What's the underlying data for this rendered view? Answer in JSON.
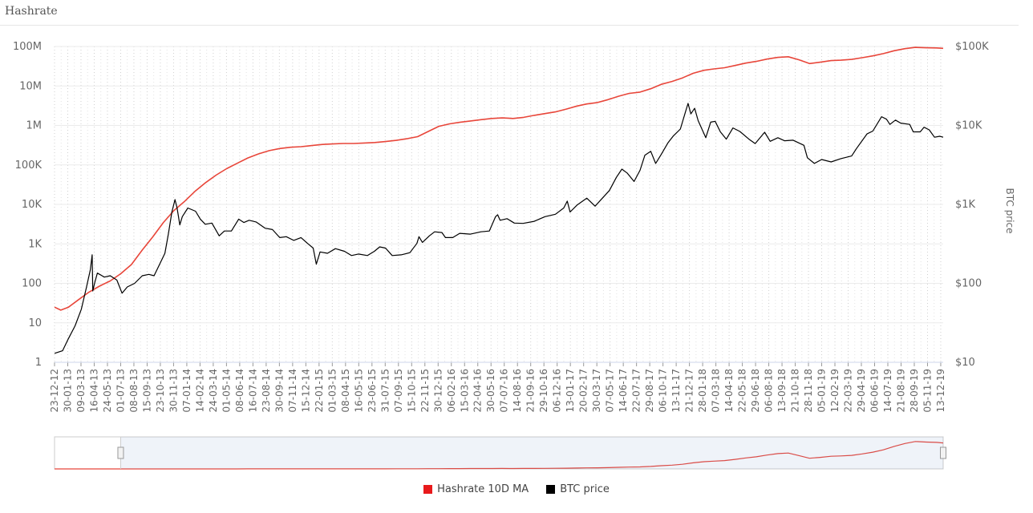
{
  "title": "Hashrate",
  "chart_data": {
    "type": "line",
    "y_left": {
      "scale": "log",
      "range": [
        1,
        100000000
      ],
      "ticks": [
        1,
        10,
        100,
        1000,
        10000,
        100000,
        1000000,
        10000000,
        100000000
      ],
      "tick_labels": [
        "1",
        "10",
        "100",
        "1K",
        "10K",
        "100K",
        "1M",
        "10M",
        "100M"
      ]
    },
    "y_right": {
      "label": "BTC price",
      "scale": "log",
      "range": [
        10,
        100000
      ],
      "ticks": [
        10,
        100,
        1000,
        10000,
        100000
      ],
      "tick_labels": [
        "$10",
        "$100",
        "$1K",
        "$10K",
        "$100K"
      ]
    },
    "x_range": [
      "2012-12-23",
      "2019-12-20"
    ],
    "x_tick_labels": [
      "23-12-12",
      "30-01-13",
      "09-03-13",
      "16-04-13",
      "24-05-13",
      "01-07-13",
      "08-08-13",
      "15-09-13",
      "23-10-13",
      "30-11-13",
      "07-01-14",
      "14-02-14",
      "24-03-14",
      "01-05-14",
      "08-06-14",
      "16-07-14",
      "23-08-14",
      "30-09-14",
      "07-11-14",
      "15-12-14",
      "22-01-15",
      "01-03-15",
      "08-04-15",
      "16-05-15",
      "23-06-15",
      "31-07-15",
      "07-09-15",
      "15-10-15",
      "22-11-15",
      "30-12-15",
      "06-02-16",
      "15-03-16",
      "22-04-16",
      "30-05-16",
      "07-07-16",
      "14-08-16",
      "21-09-16",
      "29-10-16",
      "06-12-16",
      "13-01-17",
      "20-02-17",
      "30-03-17",
      "07-05-17",
      "14-06-17",
      "22-07-17",
      "29-08-17",
      "06-10-17",
      "13-11-17",
      "21-12-17",
      "28-01-18",
      "07-03-18",
      "14-04-18",
      "22-05-18",
      "29-06-18",
      "06-08-18",
      "13-09-18",
      "21-10-18",
      "28-11-18",
      "05-01-19",
      "12-02-19",
      "22-03-19",
      "29-04-19",
      "06-06-19",
      "14-07-19",
      "21-08-19",
      "28-09-19",
      "05-11-19",
      "13-12-19"
    ],
    "grid": true,
    "legend_position": "bottom-center",
    "series": [
      {
        "name": "Hashrate 10D MA",
        "axis": "left",
        "color": "#e8463a",
        "points": [
          [
            "2012-12-23",
            25
          ],
          [
            "2013-01-10",
            21
          ],
          [
            "2013-02-01",
            25
          ],
          [
            "2013-03-01",
            38
          ],
          [
            "2013-04-01",
            60
          ],
          [
            "2013-05-01",
            85
          ],
          [
            "2013-06-01",
            115
          ],
          [
            "2013-07-01",
            175
          ],
          [
            "2013-08-01",
            300
          ],
          [
            "2013-09-01",
            700
          ],
          [
            "2013-10-01",
            1500
          ],
          [
            "2013-11-01",
            3500
          ],
          [
            "2013-12-01",
            7000
          ],
          [
            "2014-01-01",
            12000
          ],
          [
            "2014-02-01",
            22000
          ],
          [
            "2014-03-01",
            35000
          ],
          [
            "2014-04-01",
            55000
          ],
          [
            "2014-05-01",
            80000
          ],
          [
            "2014-06-01",
            110000
          ],
          [
            "2014-07-01",
            150000
          ],
          [
            "2014-08-01",
            190000
          ],
          [
            "2014-09-01",
            230000
          ],
          [
            "2014-10-01",
            260000
          ],
          [
            "2014-11-01",
            280000
          ],
          [
            "2014-12-01",
            290000
          ],
          [
            "2015-01-01",
            310000
          ],
          [
            "2015-02-01",
            330000
          ],
          [
            "2015-03-01",
            340000
          ],
          [
            "2015-04-01",
            350000
          ],
          [
            "2015-05-01",
            350000
          ],
          [
            "2015-06-01",
            360000
          ],
          [
            "2015-07-01",
            370000
          ],
          [
            "2015-08-01",
            390000
          ],
          [
            "2015-09-01",
            420000
          ],
          [
            "2015-10-01",
            460000
          ],
          [
            "2015-11-01",
            520000
          ],
          [
            "2015-12-01",
            700000
          ],
          [
            "2016-01-01",
            950000
          ],
          [
            "2016-02-01",
            1100000
          ],
          [
            "2016-03-01",
            1200000
          ],
          [
            "2016-04-01",
            1300000
          ],
          [
            "2016-05-01",
            1400000
          ],
          [
            "2016-06-01",
            1500000
          ],
          [
            "2016-07-01",
            1550000
          ],
          [
            "2016-08-01",
            1500000
          ],
          [
            "2016-09-01",
            1600000
          ],
          [
            "2016-10-01",
            1800000
          ],
          [
            "2016-11-01",
            2000000
          ],
          [
            "2016-12-01",
            2200000
          ],
          [
            "2017-01-01",
            2600000
          ],
          [
            "2017-02-01",
            3100000
          ],
          [
            "2017-03-01",
            3500000
          ],
          [
            "2017-04-01",
            3800000
          ],
          [
            "2017-05-01",
            4500000
          ],
          [
            "2017-06-01",
            5500000
          ],
          [
            "2017-07-01",
            6500000
          ],
          [
            "2017-08-01",
            7000000
          ],
          [
            "2017-09-01",
            8500000
          ],
          [
            "2017-10-01",
            11000000
          ],
          [
            "2017-11-01",
            13000000
          ],
          [
            "2017-12-01",
            16000000
          ],
          [
            "2018-01-01",
            21000000
          ],
          [
            "2018-02-01",
            25000000
          ],
          [
            "2018-03-01",
            27000000
          ],
          [
            "2018-04-01",
            29000000
          ],
          [
            "2018-05-01",
            33000000
          ],
          [
            "2018-06-01",
            38000000
          ],
          [
            "2018-07-01",
            42000000
          ],
          [
            "2018-08-01",
            48000000
          ],
          [
            "2018-09-01",
            53000000
          ],
          [
            "2018-10-01",
            55000000
          ],
          [
            "2018-11-01",
            46000000
          ],
          [
            "2018-12-01",
            37000000
          ],
          [
            "2019-01-01",
            40000000
          ],
          [
            "2019-02-01",
            44000000
          ],
          [
            "2019-03-01",
            45000000
          ],
          [
            "2019-04-01",
            47000000
          ],
          [
            "2019-05-01",
            52000000
          ],
          [
            "2019-06-01",
            58000000
          ],
          [
            "2019-07-01",
            66000000
          ],
          [
            "2019-08-01",
            78000000
          ],
          [
            "2019-09-01",
            88000000
          ],
          [
            "2019-10-01",
            95000000
          ],
          [
            "2019-11-01",
            93000000
          ],
          [
            "2019-12-01",
            92000000
          ],
          [
            "2019-12-20",
            90000000
          ]
        ]
      },
      {
        "name": "BTC price",
        "axis": "right",
        "color": "#000000",
        "points": [
          [
            "2012-12-23",
            13
          ],
          [
            "2013-01-15",
            14
          ],
          [
            "2013-02-01",
            20
          ],
          [
            "2013-02-20",
            29
          ],
          [
            "2013-03-10",
            47
          ],
          [
            "2013-03-25",
            90
          ],
          [
            "2013-04-05",
            150
          ],
          [
            "2013-04-10",
            230
          ],
          [
            "2013-04-12",
            80
          ],
          [
            "2013-04-17",
            100
          ],
          [
            "2013-04-25",
            135
          ],
          [
            "2013-05-15",
            120
          ],
          [
            "2013-06-01",
            125
          ],
          [
            "2013-06-20",
            110
          ],
          [
            "2013-07-05",
            75
          ],
          [
            "2013-07-20",
            90
          ],
          [
            "2013-08-10",
            100
          ],
          [
            "2013-09-01",
            125
          ],
          [
            "2013-09-20",
            130
          ],
          [
            "2013-10-05",
            125
          ],
          [
            "2013-10-25",
            190
          ],
          [
            "2013-11-05",
            240
          ],
          [
            "2013-11-15",
            420
          ],
          [
            "2013-11-25",
            800
          ],
          [
            "2013-12-04",
            1150
          ],
          [
            "2013-12-10",
            900
          ],
          [
            "2013-12-18",
            550
          ],
          [
            "2013-12-25",
            700
          ],
          [
            "2014-01-10",
            900
          ],
          [
            "2014-02-01",
            820
          ],
          [
            "2014-02-15",
            650
          ],
          [
            "2014-03-01",
            560
          ],
          [
            "2014-03-20",
            580
          ],
          [
            "2014-04-10",
            400
          ],
          [
            "2014-04-25",
            460
          ],
          [
            "2014-05-15",
            460
          ],
          [
            "2014-06-05",
            650
          ],
          [
            "2014-06-20",
            590
          ],
          [
            "2014-07-05",
            630
          ],
          [
            "2014-07-25",
            600
          ],
          [
            "2014-08-20",
            500
          ],
          [
            "2014-09-10",
            480
          ],
          [
            "2014-10-01",
            380
          ],
          [
            "2014-10-20",
            390
          ],
          [
            "2014-11-10",
            350
          ],
          [
            "2014-12-01",
            380
          ],
          [
            "2014-12-20",
            320
          ],
          [
            "2015-01-05",
            280
          ],
          [
            "2015-01-14",
            175
          ],
          [
            "2015-01-25",
            250
          ],
          [
            "2015-02-15",
            240
          ],
          [
            "2015-03-10",
            275
          ],
          [
            "2015-04-05",
            255
          ],
          [
            "2015-04-25",
            225
          ],
          [
            "2015-05-15",
            235
          ],
          [
            "2015-06-10",
            225
          ],
          [
            "2015-06-30",
            255
          ],
          [
            "2015-07-15",
            290
          ],
          [
            "2015-08-01",
            280
          ],
          [
            "2015-08-20",
            225
          ],
          [
            "2015-09-15",
            230
          ],
          [
            "2015-10-10",
            245
          ],
          [
            "2015-10-30",
            320
          ],
          [
            "2015-11-05",
            390
          ],
          [
            "2015-11-15",
            330
          ],
          [
            "2015-12-05",
            400
          ],
          [
            "2015-12-20",
            450
          ],
          [
            "2016-01-10",
            440
          ],
          [
            "2016-01-20",
            380
          ],
          [
            "2016-02-10",
            380
          ],
          [
            "2016-03-01",
            430
          ],
          [
            "2016-04-01",
            420
          ],
          [
            "2016-05-01",
            450
          ],
          [
            "2016-05-25",
            460
          ],
          [
            "2016-06-12",
            700
          ],
          [
            "2016-06-18",
            740
          ],
          [
            "2016-06-25",
            630
          ],
          [
            "2016-07-15",
            660
          ],
          [
            "2016-08-05",
            580
          ],
          [
            "2016-08-30",
            575
          ],
          [
            "2016-10-01",
            610
          ],
          [
            "2016-11-01",
            700
          ],
          [
            "2016-12-01",
            750
          ],
          [
            "2016-12-25",
            900
          ],
          [
            "2017-01-04",
            1100
          ],
          [
            "2017-01-12",
            800
          ],
          [
            "2017-02-01",
            980
          ],
          [
            "2017-03-01",
            1200
          ],
          [
            "2017-03-25",
            950
          ],
          [
            "2017-04-15",
            1200
          ],
          [
            "2017-05-05",
            1500
          ],
          [
            "2017-05-25",
            2200
          ],
          [
            "2017-06-10",
            2800
          ],
          [
            "2017-06-25",
            2500
          ],
          [
            "2017-07-15",
            1950
          ],
          [
            "2017-08-01",
            2700
          ],
          [
            "2017-08-15",
            4200
          ],
          [
            "2017-09-01",
            4700
          ],
          [
            "2017-09-15",
            3300
          ],
          [
            "2017-10-01",
            4300
          ],
          [
            "2017-10-20",
            6000
          ],
          [
            "2017-11-05",
            7400
          ],
          [
            "2017-11-25",
            9000
          ],
          [
            "2017-12-10",
            15000
          ],
          [
            "2017-12-17",
            19000
          ],
          [
            "2017-12-25",
            14000
          ],
          [
            "2018-01-05",
            16500
          ],
          [
            "2018-01-15",
            11500
          ],
          [
            "2018-02-06",
            7000
          ],
          [
            "2018-02-20",
            11000
          ],
          [
            "2018-03-05",
            11300
          ],
          [
            "2018-03-20",
            8300
          ],
          [
            "2018-04-06",
            6700
          ],
          [
            "2018-04-25",
            9300
          ],
          [
            "2018-05-15",
            8400
          ],
          [
            "2018-06-10",
            6700
          ],
          [
            "2018-06-28",
            5900
          ],
          [
            "2018-07-25",
            8200
          ],
          [
            "2018-08-10",
            6300
          ],
          [
            "2018-09-01",
            7000
          ],
          [
            "2018-09-20",
            6400
          ],
          [
            "2018-10-15",
            6500
          ],
          [
            "2018-11-15",
            5600
          ],
          [
            "2018-11-25",
            3900
          ],
          [
            "2018-12-15",
            3300
          ],
          [
            "2019-01-05",
            3700
          ],
          [
            "2019-02-01",
            3450
          ],
          [
            "2019-03-01",
            3800
          ],
          [
            "2019-04-01",
            4100
          ],
          [
            "2019-04-15",
            5100
          ],
          [
            "2019-05-15",
            7800
          ],
          [
            "2019-06-01",
            8500
          ],
          [
            "2019-06-26",
            12900
          ],
          [
            "2019-07-10",
            12000
          ],
          [
            "2019-07-20",
            10300
          ],
          [
            "2019-08-05",
            11700
          ],
          [
            "2019-08-20",
            10700
          ],
          [
            "2019-09-15",
            10300
          ],
          [
            "2019-09-25",
            8300
          ],
          [
            "2019-10-15",
            8300
          ],
          [
            "2019-10-26",
            9500
          ],
          [
            "2019-11-10",
            8800
          ],
          [
            "2019-11-25",
            7100
          ],
          [
            "2019-12-10",
            7300
          ],
          [
            "2019-12-20",
            7100
          ]
        ]
      }
    ]
  },
  "navigator": {
    "series_name": "Hashrate 10D MA",
    "selected_range": [
      "2013-07-01",
      "2019-12-20"
    ]
  }
}
